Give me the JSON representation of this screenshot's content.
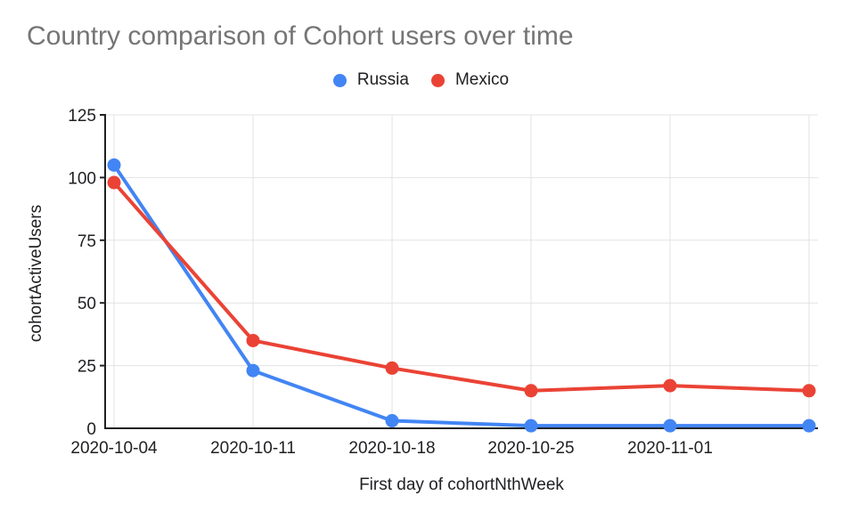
{
  "chart_data": {
    "type": "line",
    "title": "Country comparison of Cohort users over time",
    "xlabel": "First day of cohortNthWeek",
    "ylabel": "cohortActiveUsers",
    "x_tick_labels": [
      "2020-10-04",
      "2020-10-11",
      "2020-10-18",
      "2020-10-25",
      "2020-11-01"
    ],
    "yticks": [
      0,
      25,
      50,
      75,
      100,
      125
    ],
    "ylim": [
      0,
      125
    ],
    "grid": true,
    "legend_position": "top-center",
    "num_points": 6,
    "series": [
      {
        "name": "Russia",
        "color": "#4285F4",
        "values": [
          105,
          23,
          3,
          1,
          1,
          1
        ]
      },
      {
        "name": "Mexico",
        "color": "#EA4335",
        "values": [
          98,
          35,
          24,
          15,
          17,
          15
        ]
      }
    ],
    "palette": {
      "title_color": "#757575",
      "label_color": "#202124",
      "grid_color": "#e3e3e3",
      "axis_color": "#212121",
      "background": "#ffffff"
    }
  }
}
